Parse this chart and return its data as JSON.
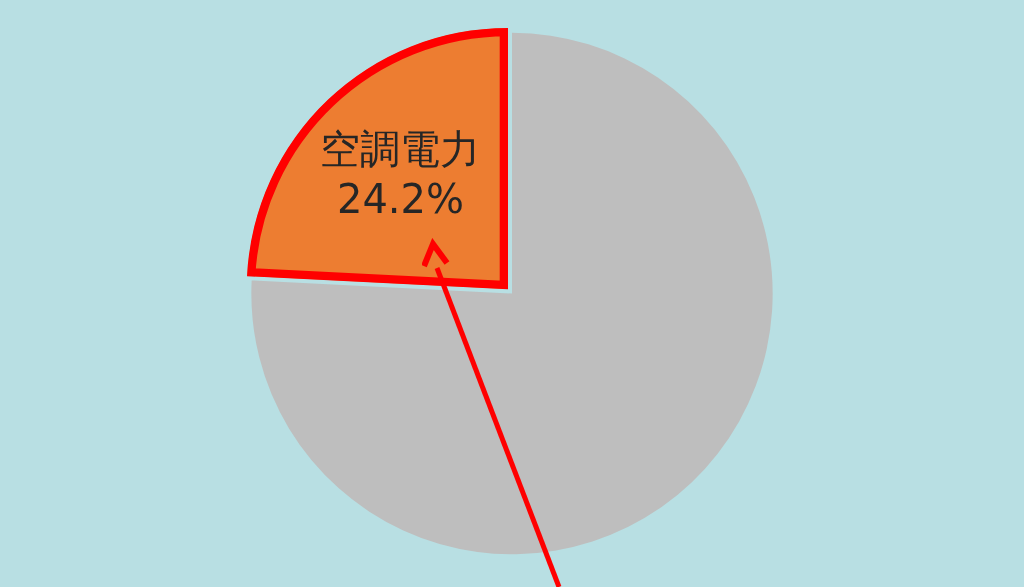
{
  "chart_data": {
    "type": "pie",
    "categories": [
      "空調電力",
      null
    ],
    "values": [
      24.2,
      75.8
    ],
    "value_labels": [
      "24.2%",
      null
    ],
    "colors": [
      "#ed7d31",
      "#bebebe"
    ]
  }
}
